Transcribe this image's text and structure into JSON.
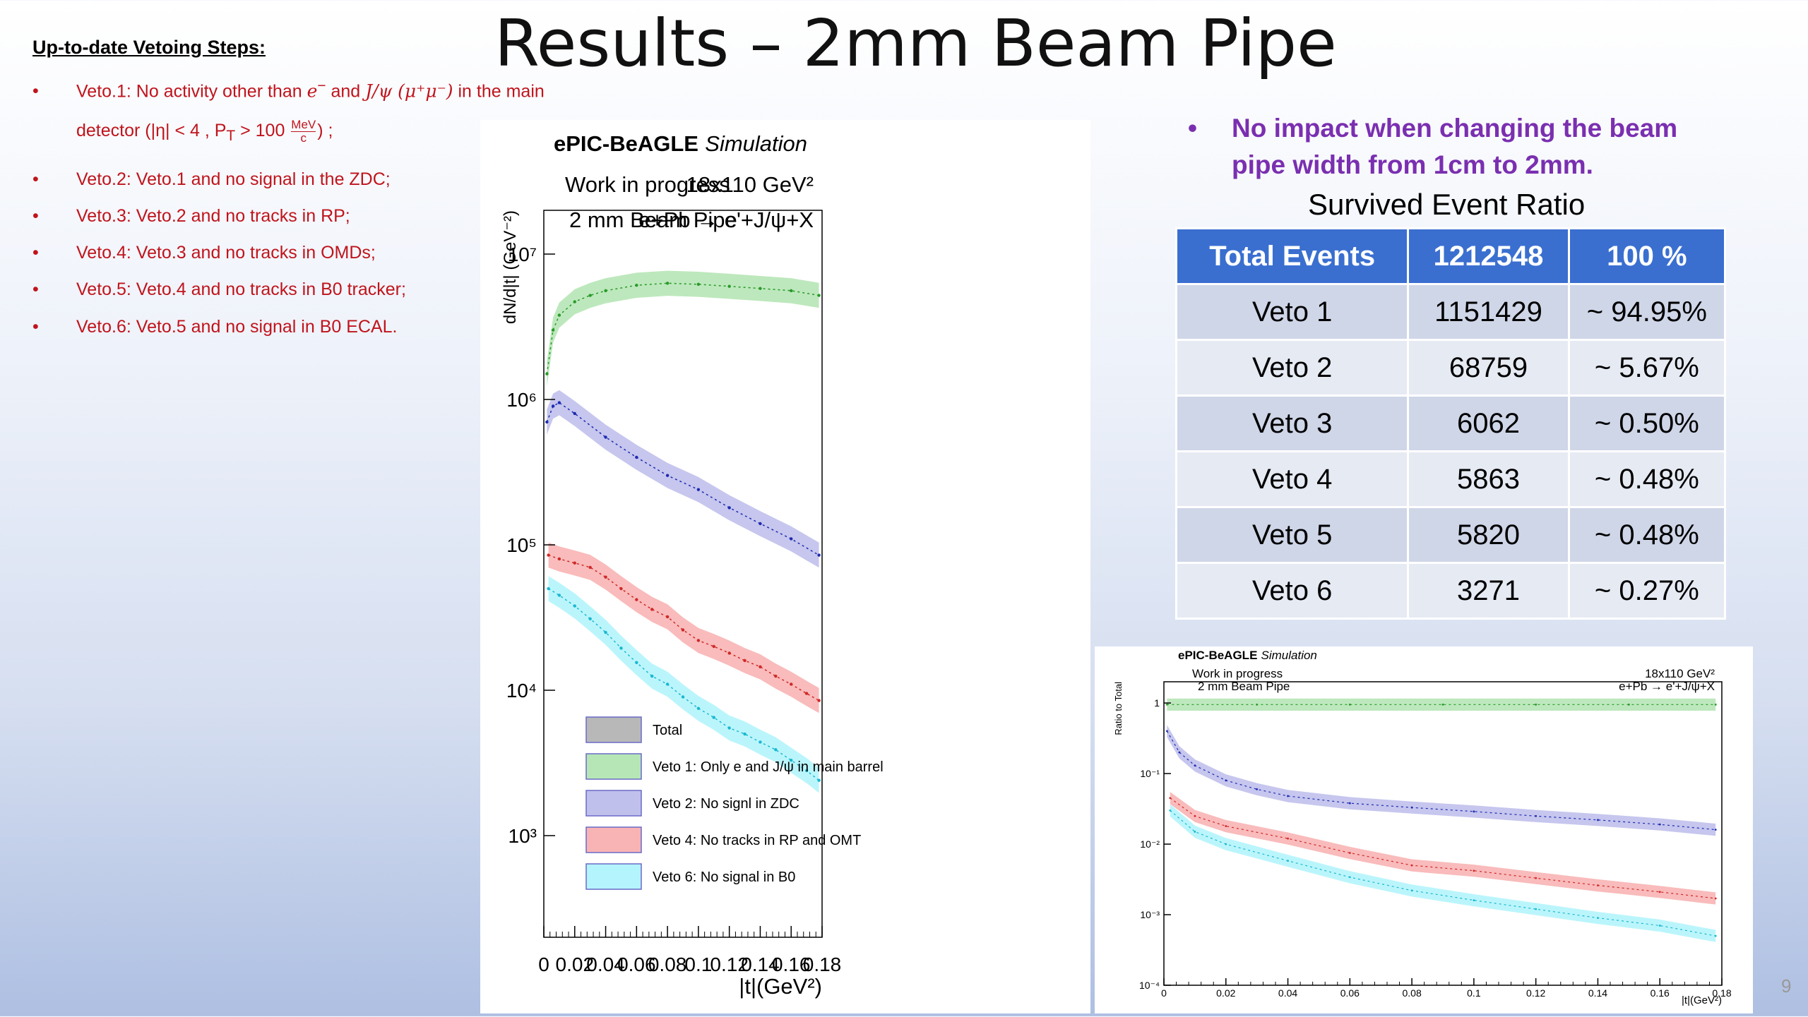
{
  "slide": {
    "title": "Results – 2mm Beam Pipe",
    "page_number": "9"
  },
  "steps": {
    "heading": "Up-to-date Vetoing Steps:",
    "bullet": "•",
    "veto1_a": "Veto.1: No activity other than ",
    "veto1_e": "e",
    "veto1_and": " and ",
    "veto1_jpsi": "J/ψ (μ⁺μ⁻)",
    "veto1_main": " in the main",
    "veto1_detector": "detector (|η| < 4 , P",
    "veto1_T": "T",
    "veto1_gt": " > 100 ",
    "veto1_mev": "MeV",
    "veto1_c": "c",
    "veto1_end": ") ;",
    "items": [
      "Veto.2: Veto.1 and no signal in the ZDC;",
      "Veto.3: Veto.2 and no tracks in RP;",
      "Veto.4: Veto.3 and no tracks in OMDs;",
      "Veto.5: Veto.4 and no tracks in B0 tracker;",
      "Veto.6: Veto.5 and no signal in B0 ECAL."
    ]
  },
  "impact": {
    "bullet": "•",
    "line1": "No impact when changing the beam",
    "line2": "pipe width from 1cm to 2mm."
  },
  "table": {
    "title": "Survived Event Ratio",
    "header": [
      "Total Events",
      "1212548",
      "100 %"
    ],
    "rows": [
      [
        "Veto 1",
        "1151429",
        "~ 94.95%"
      ],
      [
        "Veto 2",
        "68759",
        "~ 5.67%"
      ],
      [
        "Veto 3",
        "6062",
        "~ 0.50%"
      ],
      [
        "Veto 4",
        "5863",
        "~ 0.48%"
      ],
      [
        "Veto 5",
        "5820",
        "~ 0.48%"
      ],
      [
        "Veto 6",
        "3271",
        "~ 0.27%"
      ]
    ]
  },
  "chart_data": [
    {
      "type": "line",
      "scale_y": "log",
      "header_bold": "ePIC-BeAGLE",
      "header_italic": "Simulation",
      "annot_left": "Work in progress",
      "annot_right": "18x110 GeV²",
      "annot_left2": "2 mm Beam Pipe",
      "annot_right2": "e+Pb → e'+J/ψ+X",
      "xlabel": "|t|(GeV²)",
      "ylabel": "dN/d|t| (GeV⁻²)",
      "xlim": [
        0,
        0.18
      ],
      "ylim": [
        200,
        20000000
      ],
      "x_ticks": [
        "0",
        "0.02",
        "0.04",
        "0.06",
        "0.08",
        "0.1",
        "0.12",
        "0.14",
        "0.16",
        "0.18"
      ],
      "y_ticks": [
        "10³",
        "10⁴",
        "10⁵",
        "10⁶",
        "10⁷"
      ],
      "y_tick_values": [
        1000,
        10000,
        100000,
        1000000,
        10000000
      ],
      "legend": [
        "Total",
        "Veto 1: Only e and J/ψ in main barrel",
        "Veto 2: No signl in ZDC",
        "Veto 4: No tracks in RP and OMT",
        "Veto 6: No signal in B0"
      ],
      "legend_colors": [
        "#b8b8b8",
        "#b6e6b6",
        "#c0c0ec",
        "#f8b4b4",
        "#b4f4fc"
      ],
      "series": [
        {
          "color": "#2a9a2a",
          "band": "#b6e6b6",
          "x": [
            0.002,
            0.006,
            0.01,
            0.02,
            0.03,
            0.04,
            0.06,
            0.08,
            0.1,
            0.12,
            0.14,
            0.16,
            0.178
          ],
          "y": [
            1500000,
            3000000,
            3800000,
            4700000,
            5200000,
            5600000,
            6100000,
            6300000,
            6200000,
            6000000,
            5800000,
            5600000,
            5200000
          ]
        },
        {
          "color": "#1e2ab0",
          "band": "#c0c0ec",
          "x": [
            0.002,
            0.006,
            0.01,
            0.02,
            0.04,
            0.06,
            0.08,
            0.1,
            0.12,
            0.14,
            0.16,
            0.178
          ],
          "y": [
            700000,
            900000,
            950000,
            800000,
            550000,
            400000,
            300000,
            240000,
            180000,
            140000,
            110000,
            85000
          ]
        },
        {
          "color": "#d02828",
          "band": "#f8b4b4",
          "x": [
            0.003,
            0.01,
            0.02,
            0.03,
            0.04,
            0.05,
            0.06,
            0.07,
            0.08,
            0.09,
            0.1,
            0.11,
            0.12,
            0.13,
            0.14,
            0.15,
            0.16,
            0.17,
            0.178
          ],
          "y": [
            85000,
            80000,
            75000,
            70000,
            60000,
            50000,
            42000,
            36000,
            32000,
            26000,
            22000,
            20000,
            18000,
            16000,
            14500,
            12500,
            11000,
            9500,
            8500
          ]
        },
        {
          "color": "#18b8d0",
          "band": "#b4f4fc",
          "x": [
            0.003,
            0.01,
            0.02,
            0.03,
            0.04,
            0.05,
            0.06,
            0.07,
            0.08,
            0.09,
            0.1,
            0.11,
            0.12,
            0.13,
            0.14,
            0.15,
            0.16,
            0.17,
            0.178
          ],
          "y": [
            50000,
            45000,
            38000,
            31000,
            25000,
            19500,
            15500,
            12500,
            11000,
            9000,
            7500,
            6500,
            5500,
            5000,
            4400,
            3900,
            3300,
            2800,
            2400
          ]
        }
      ]
    },
    {
      "type": "line",
      "scale_y": "log",
      "header_bold": "ePIC-BeAGLE",
      "header_italic": "Simulation",
      "annot_left": "Work in progress",
      "annot_right": "18x110 GeV²",
      "annot_left2": "2 mm Beam Pipe",
      "annot_right2": "e+Pb → e'+J/ψ+X",
      "xlabel": "|t|(GeV²)",
      "ylabel": "Ratio to Total",
      "xlim": [
        0,
        0.18
      ],
      "ylim": [
        0.0001,
        2
      ],
      "x_ticks": [
        "0",
        "0.02",
        "0.04",
        "0.06",
        "0.08",
        "0.1",
        "0.12",
        "0.14",
        "0.16",
        "0.18"
      ],
      "y_ticks": [
        "10⁻⁴",
        "10⁻³",
        "10⁻²",
        "10⁻¹",
        "1"
      ],
      "y_tick_values": [
        0.0001,
        0.001,
        0.01,
        0.1,
        1
      ],
      "series": [
        {
          "color": "#2a9a2a",
          "band": "#b6e6b6",
          "x": [
            0.001,
            0.03,
            0.06,
            0.09,
            0.12,
            0.15,
            0.178
          ],
          "y": [
            0.95,
            0.95,
            0.95,
            0.95,
            0.95,
            0.95,
            0.95
          ]
        },
        {
          "color": "#1e2ab0",
          "band": "#c0c0ec",
          "x": [
            0.001,
            0.005,
            0.01,
            0.02,
            0.03,
            0.04,
            0.06,
            0.08,
            0.1,
            0.12,
            0.14,
            0.16,
            0.178
          ],
          "y": [
            0.4,
            0.2,
            0.13,
            0.08,
            0.06,
            0.048,
            0.038,
            0.033,
            0.029,
            0.025,
            0.022,
            0.019,
            0.016
          ]
        },
        {
          "color": "#d02828",
          "band": "#f8b4b4",
          "x": [
            0.002,
            0.01,
            0.02,
            0.04,
            0.06,
            0.08,
            0.1,
            0.12,
            0.14,
            0.16,
            0.178
          ],
          "y": [
            0.045,
            0.025,
            0.018,
            0.012,
            0.0075,
            0.005,
            0.0042,
            0.0033,
            0.0026,
            0.0021,
            0.0017
          ]
        },
        {
          "color": "#18b8d0",
          "band": "#b4f4fc",
          "x": [
            0.002,
            0.01,
            0.02,
            0.04,
            0.06,
            0.08,
            0.1,
            0.12,
            0.14,
            0.16,
            0.178
          ],
          "y": [
            0.03,
            0.015,
            0.01,
            0.0058,
            0.0034,
            0.0022,
            0.0016,
            0.0012,
            0.0009,
            0.0007,
            0.0005
          ]
        }
      ]
    }
  ]
}
